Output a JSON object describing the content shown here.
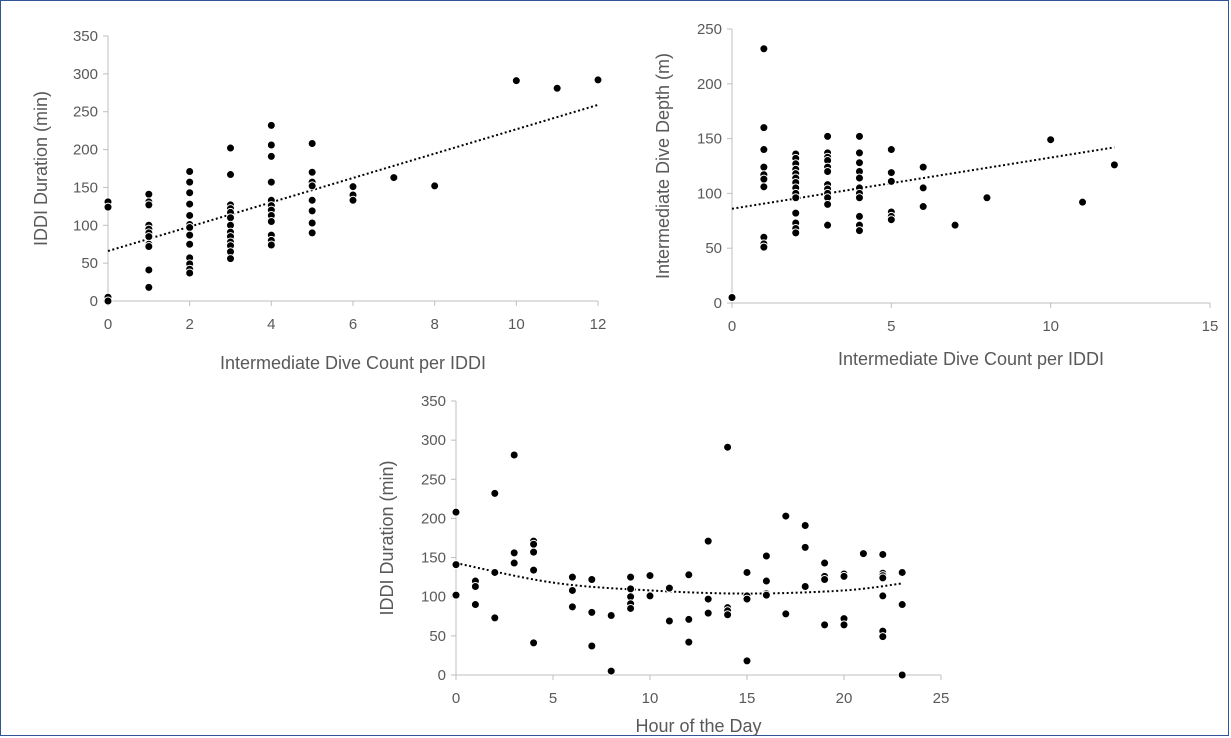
{
  "chart_data": [
    {
      "type": "scatter",
      "xlabel": "Intermediate Dive Count per IDDI",
      "ylabel": "IDDI Duration (min)",
      "xlim": [
        0,
        12
      ],
      "ylim": [
        0,
        350
      ],
      "xticks": [
        "0",
        "2",
        "4",
        "6",
        "8",
        "10",
        "12"
      ],
      "yticks": [
        "0",
        "50",
        "100",
        "150",
        "200",
        "250",
        "300",
        "350"
      ],
      "trendline": {
        "type": "linear",
        "x": [
          0,
          12
        ],
        "y": [
          66,
          259
        ]
      },
      "points": [
        {
          "x": 0,
          "y": 131
        },
        {
          "x": 0,
          "y": 124
        },
        {
          "x": 0,
          "y": 5
        },
        {
          "x": 0,
          "y": 0
        },
        {
          "x": 1,
          "y": 141
        },
        {
          "x": 1,
          "y": 131
        },
        {
          "x": 1,
          "y": 127
        },
        {
          "x": 1,
          "y": 100
        },
        {
          "x": 1,
          "y": 95
        },
        {
          "x": 1,
          "y": 90
        },
        {
          "x": 1,
          "y": 85
        },
        {
          "x": 1,
          "y": 75
        },
        {
          "x": 1,
          "y": 72
        },
        {
          "x": 1,
          "y": 41
        },
        {
          "x": 1,
          "y": 18
        },
        {
          "x": 2,
          "y": 171
        },
        {
          "x": 2,
          "y": 157
        },
        {
          "x": 2,
          "y": 143
        },
        {
          "x": 2,
          "y": 128
        },
        {
          "x": 2,
          "y": 113
        },
        {
          "x": 2,
          "y": 101
        },
        {
          "x": 2,
          "y": 97
        },
        {
          "x": 2,
          "y": 87
        },
        {
          "x": 2,
          "y": 75
        },
        {
          "x": 2,
          "y": 57
        },
        {
          "x": 2,
          "y": 49
        },
        {
          "x": 2,
          "y": 42
        },
        {
          "x": 2,
          "y": 37
        },
        {
          "x": 3,
          "y": 202
        },
        {
          "x": 3,
          "y": 167
        },
        {
          "x": 3,
          "y": 127
        },
        {
          "x": 3,
          "y": 122
        },
        {
          "x": 3,
          "y": 117
        },
        {
          "x": 3,
          "y": 110
        },
        {
          "x": 3,
          "y": 100
        },
        {
          "x": 3,
          "y": 91
        },
        {
          "x": 3,
          "y": 85
        },
        {
          "x": 3,
          "y": 78
        },
        {
          "x": 3,
          "y": 73
        },
        {
          "x": 3,
          "y": 65
        },
        {
          "x": 3,
          "y": 56
        },
        {
          "x": 4,
          "y": 232
        },
        {
          "x": 4,
          "y": 206
        },
        {
          "x": 4,
          "y": 191
        },
        {
          "x": 4,
          "y": 157
        },
        {
          "x": 4,
          "y": 133
        },
        {
          "x": 4,
          "y": 126
        },
        {
          "x": 4,
          "y": 120
        },
        {
          "x": 4,
          "y": 113
        },
        {
          "x": 4,
          "y": 105
        },
        {
          "x": 4,
          "y": 87
        },
        {
          "x": 4,
          "y": 80
        },
        {
          "x": 4,
          "y": 74
        },
        {
          "x": 5,
          "y": 208
        },
        {
          "x": 5,
          "y": 170
        },
        {
          "x": 5,
          "y": 157
        },
        {
          "x": 5,
          "y": 152
        },
        {
          "x": 5,
          "y": 133
        },
        {
          "x": 5,
          "y": 119
        },
        {
          "x": 5,
          "y": 103
        },
        {
          "x": 5,
          "y": 90
        },
        {
          "x": 6,
          "y": 151
        },
        {
          "x": 6,
          "y": 140
        },
        {
          "x": 6,
          "y": 133
        },
        {
          "x": 7,
          "y": 163
        },
        {
          "x": 8,
          "y": 152
        },
        {
          "x": 10,
          "y": 291
        },
        {
          "x": 11,
          "y": 281
        },
        {
          "x": 12,
          "y": 292
        }
      ]
    },
    {
      "type": "scatter",
      "xlabel": "Intermediate Dive Count per IDDI",
      "ylabel": "Intermediate Dive Depth (m)",
      "xlim": [
        0,
        15
      ],
      "ylim": [
        0,
        250
      ],
      "xticks": [
        "0",
        "5",
        "10",
        "15"
      ],
      "yticks": [
        "0",
        "50",
        "100",
        "150",
        "200",
        "250"
      ],
      "trendline": {
        "type": "linear",
        "x": [
          0,
          12
        ],
        "y": [
          86,
          142
        ]
      },
      "points": [
        {
          "x": 0,
          "y": 5
        },
        {
          "x": 1,
          "y": 232
        },
        {
          "x": 1,
          "y": 160
        },
        {
          "x": 1,
          "y": 140
        },
        {
          "x": 1,
          "y": 124
        },
        {
          "x": 1,
          "y": 117
        },
        {
          "x": 1,
          "y": 113
        },
        {
          "x": 1,
          "y": 106
        },
        {
          "x": 1,
          "y": 60
        },
        {
          "x": 1,
          "y": 54
        },
        {
          "x": 1,
          "y": 51
        },
        {
          "x": 2,
          "y": 136
        },
        {
          "x": 2,
          "y": 132
        },
        {
          "x": 2,
          "y": 127
        },
        {
          "x": 2,
          "y": 122
        },
        {
          "x": 2,
          "y": 118
        },
        {
          "x": 2,
          "y": 114
        },
        {
          "x": 2,
          "y": 110
        },
        {
          "x": 2,
          "y": 105
        },
        {
          "x": 2,
          "y": 100
        },
        {
          "x": 2,
          "y": 96
        },
        {
          "x": 2,
          "y": 82
        },
        {
          "x": 2,
          "y": 73
        },
        {
          "x": 2,
          "y": 68
        },
        {
          "x": 2,
          "y": 64
        },
        {
          "x": 3,
          "y": 152
        },
        {
          "x": 3,
          "y": 137
        },
        {
          "x": 3,
          "y": 133
        },
        {
          "x": 3,
          "y": 130
        },
        {
          "x": 3,
          "y": 124
        },
        {
          "x": 3,
          "y": 120
        },
        {
          "x": 3,
          "y": 108
        },
        {
          "x": 3,
          "y": 104
        },
        {
          "x": 3,
          "y": 100
        },
        {
          "x": 3,
          "y": 96
        },
        {
          "x": 3,
          "y": 90
        },
        {
          "x": 3,
          "y": 71
        },
        {
          "x": 4,
          "y": 152
        },
        {
          "x": 4,
          "y": 137
        },
        {
          "x": 4,
          "y": 128
        },
        {
          "x": 4,
          "y": 120
        },
        {
          "x": 4,
          "y": 114
        },
        {
          "x": 4,
          "y": 105
        },
        {
          "x": 4,
          "y": 100
        },
        {
          "x": 4,
          "y": 96
        },
        {
          "x": 4,
          "y": 79
        },
        {
          "x": 4,
          "y": 71
        },
        {
          "x": 4,
          "y": 66
        },
        {
          "x": 5,
          "y": 140
        },
        {
          "x": 5,
          "y": 119
        },
        {
          "x": 5,
          "y": 111
        },
        {
          "x": 5,
          "y": 83
        },
        {
          "x": 5,
          "y": 79
        },
        {
          "x": 5,
          "y": 76
        },
        {
          "x": 6,
          "y": 124
        },
        {
          "x": 6,
          "y": 105
        },
        {
          "x": 6,
          "y": 88
        },
        {
          "x": 7,
          "y": 71
        },
        {
          "x": 8,
          "y": 96
        },
        {
          "x": 10,
          "y": 149
        },
        {
          "x": 11,
          "y": 92
        },
        {
          "x": 12,
          "y": 126
        }
      ]
    },
    {
      "type": "scatter",
      "xlabel": "Hour of the Day",
      "ylabel": "IDDI Duration (min)",
      "xlim": [
        0,
        25
      ],
      "ylim": [
        0,
        350
      ],
      "xticks": [
        "0",
        "5",
        "10",
        "15",
        "20",
        "25"
      ],
      "yticks": [
        "0",
        "50",
        "100",
        "150",
        "200",
        "250",
        "300",
        "350"
      ],
      "trendline": {
        "type": "polynomial",
        "x": [
          0,
          5,
          10,
          15,
          20,
          23
        ],
        "y": [
          143,
          118,
          108,
          104,
          108,
          117
        ]
      },
      "points": [
        {
          "x": 0,
          "y": 208
        },
        {
          "x": 0,
          "y": 141
        },
        {
          "x": 0,
          "y": 102
        },
        {
          "x": 1,
          "y": 120
        },
        {
          "x": 1,
          "y": 113
        },
        {
          "x": 1,
          "y": 90
        },
        {
          "x": 2,
          "y": 232
        },
        {
          "x": 2,
          "y": 131
        },
        {
          "x": 2,
          "y": 73
        },
        {
          "x": 3,
          "y": 281
        },
        {
          "x": 3,
          "y": 156
        },
        {
          "x": 3,
          "y": 143
        },
        {
          "x": 4,
          "y": 171
        },
        {
          "x": 4,
          "y": 167
        },
        {
          "x": 4,
          "y": 157
        },
        {
          "x": 4,
          "y": 134
        },
        {
          "x": 4,
          "y": 41
        },
        {
          "x": 6,
          "y": 125
        },
        {
          "x": 6,
          "y": 108
        },
        {
          "x": 6,
          "y": 87
        },
        {
          "x": 7,
          "y": 122
        },
        {
          "x": 7,
          "y": 80
        },
        {
          "x": 7,
          "y": 37
        },
        {
          "x": 8,
          "y": 76
        },
        {
          "x": 8,
          "y": 5
        },
        {
          "x": 9,
          "y": 125
        },
        {
          "x": 9,
          "y": 110
        },
        {
          "x": 9,
          "y": 100
        },
        {
          "x": 9,
          "y": 91
        },
        {
          "x": 9,
          "y": 85
        },
        {
          "x": 10,
          "y": 127
        },
        {
          "x": 10,
          "y": 101
        },
        {
          "x": 11,
          "y": 111
        },
        {
          "x": 11,
          "y": 69
        },
        {
          "x": 12,
          "y": 128
        },
        {
          "x": 12,
          "y": 71
        },
        {
          "x": 12,
          "y": 42
        },
        {
          "x": 13,
          "y": 171
        },
        {
          "x": 13,
          "y": 97
        },
        {
          "x": 13,
          "y": 79
        },
        {
          "x": 14,
          "y": 291
        },
        {
          "x": 14,
          "y": 86
        },
        {
          "x": 14,
          "y": 82
        },
        {
          "x": 14,
          "y": 77
        },
        {
          "x": 15,
          "y": 131
        },
        {
          "x": 15,
          "y": 101
        },
        {
          "x": 15,
          "y": 97
        },
        {
          "x": 15,
          "y": 18
        },
        {
          "x": 16,
          "y": 152
        },
        {
          "x": 16,
          "y": 120
        },
        {
          "x": 16,
          "y": 104
        },
        {
          "x": 16,
          "y": 102
        },
        {
          "x": 17,
          "y": 203
        },
        {
          "x": 17,
          "y": 78
        },
        {
          "x": 18,
          "y": 191
        },
        {
          "x": 18,
          "y": 163
        },
        {
          "x": 18,
          "y": 113
        },
        {
          "x": 19,
          "y": 143
        },
        {
          "x": 19,
          "y": 126
        },
        {
          "x": 19,
          "y": 122
        },
        {
          "x": 19,
          "y": 64
        },
        {
          "x": 20,
          "y": 129
        },
        {
          "x": 20,
          "y": 126
        },
        {
          "x": 20,
          "y": 72
        },
        {
          "x": 20,
          "y": 64
        },
        {
          "x": 21,
          "y": 155
        },
        {
          "x": 22,
          "y": 154
        },
        {
          "x": 22,
          "y": 130
        },
        {
          "x": 22,
          "y": 127
        },
        {
          "x": 22,
          "y": 124
        },
        {
          "x": 22,
          "y": 101
        },
        {
          "x": 22,
          "y": 56
        },
        {
          "x": 22,
          "y": 49
        },
        {
          "x": 23,
          "y": 131
        },
        {
          "x": 23,
          "y": 90
        },
        {
          "x": 23,
          "y": 0
        }
      ]
    }
  ]
}
